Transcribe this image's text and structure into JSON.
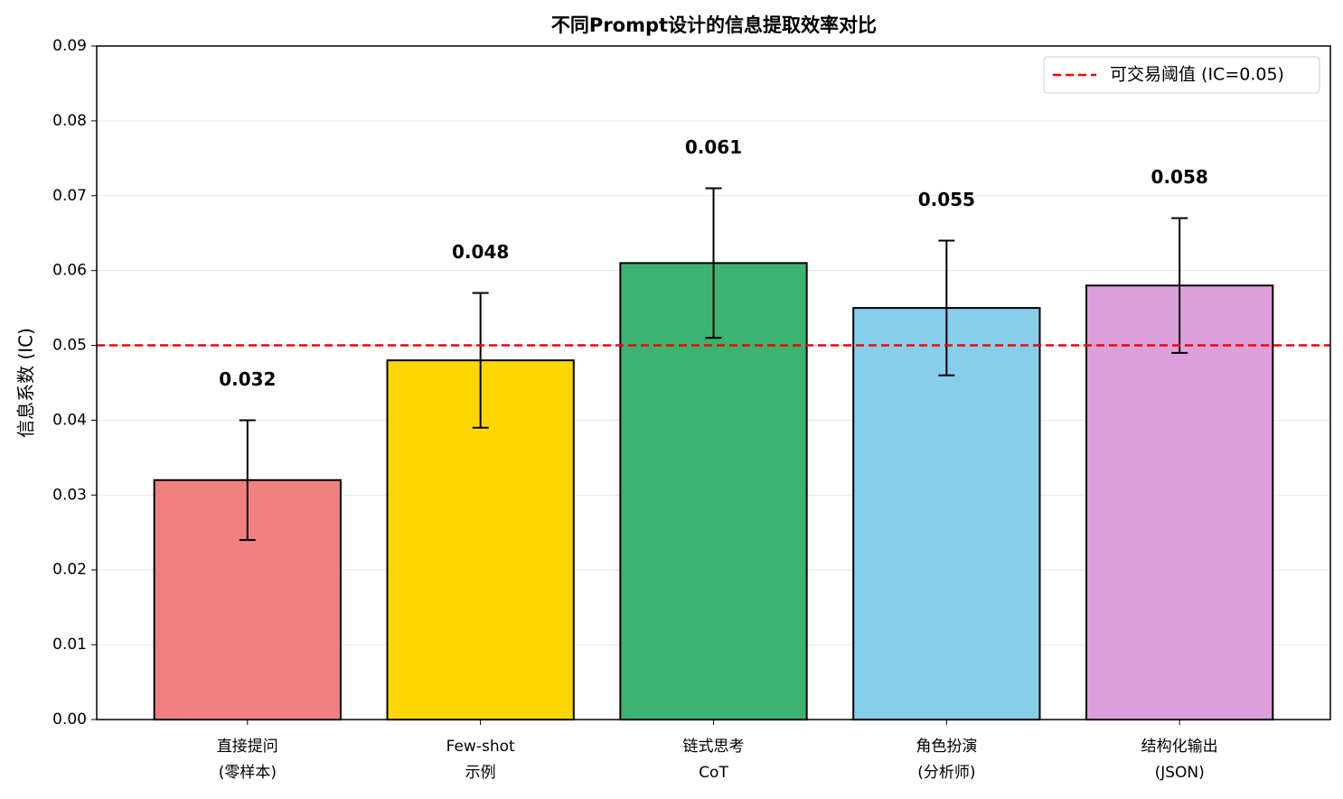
{
  "chart_data": {
    "type": "bar",
    "title": "不同Prompt设计的信息提取效率对比",
    "y_label": "信息系数 (IC)",
    "categories": [
      [
        "直接提问",
        "(零样本)"
      ],
      [
        "Few-shot",
        "示例"
      ],
      [
        "链式思考",
        "CoT"
      ],
      [
        "角色扮演",
        "(分析师)"
      ],
      [
        "结构化输出",
        "(JSON)"
      ]
    ],
    "values": [
      0.032,
      0.048,
      0.061,
      0.055,
      0.058
    ],
    "errors": [
      0.008,
      0.009,
      0.01,
      0.009,
      0.009
    ],
    "colors": [
      "#F08080",
      "#FFD700",
      "#3CB371",
      "#87CEEB",
      "#DDA0DD"
    ],
    "ylim": [
      0,
      0.09
    ],
    "yticks": [
      {
        "value": 0,
        "label": "0.00"
      },
      0.01,
      0.02,
      0.03,
      0.04,
      0.05,
      0.06,
      0.07,
      0.08,
      0.09
    ],
    "grid": true,
    "threshold": {
      "value": 0.05,
      "label": "可交易阈值 (IC=0.05)",
      "color": "#ff0000"
    },
    "legend_position": "upper right"
  }
}
